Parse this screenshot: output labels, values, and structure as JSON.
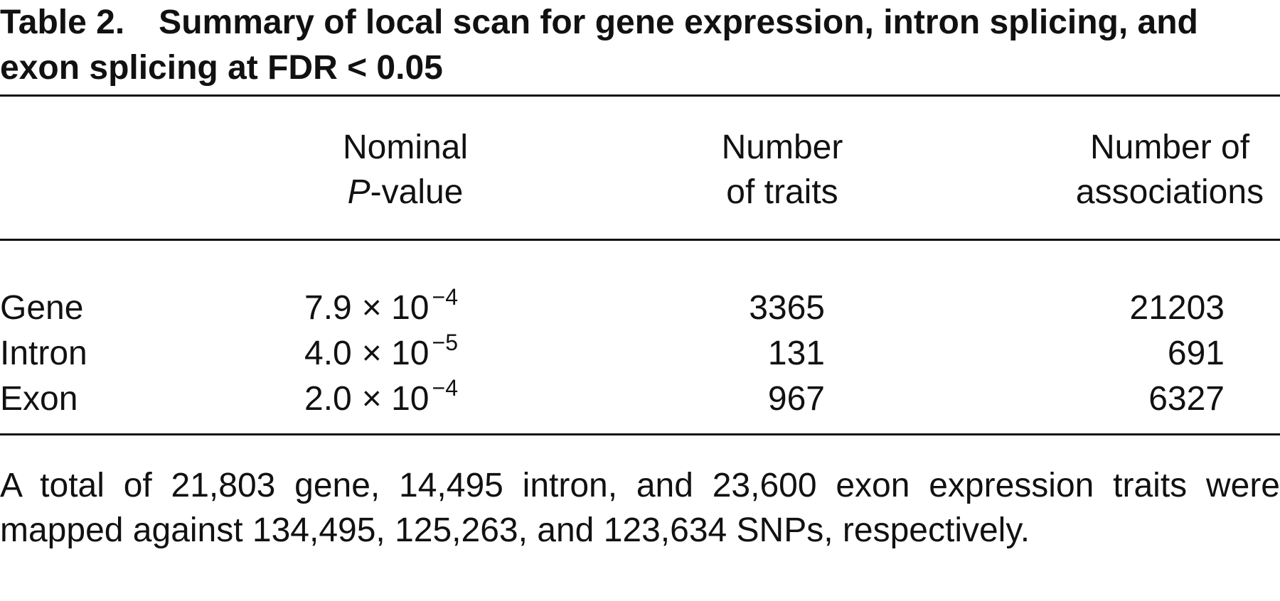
{
  "caption": {
    "label": "Table 2.",
    "title": "Summary of local scan for gene expression, intron splicing, and exon splicing at FDR < 0.05"
  },
  "table": {
    "headers": [
      {
        "line1": "Nominal",
        "italic": "P",
        "rest": "-value"
      },
      {
        "line1": "Number",
        "line2": "of traits"
      },
      {
        "line1": "Number of",
        "line2": "associations"
      }
    ],
    "rows": [
      {
        "label": "Gene",
        "mantissa": "7.9",
        "base": "× 10",
        "exponent": "−4",
        "traits": 3365,
        "associations": 21203
      },
      {
        "label": "Intron",
        "mantissa": "4.0",
        "base": "× 10",
        "exponent": "−5",
        "traits": 131,
        "associations": 691
      },
      {
        "label": "Exon",
        "mantissa": "2.0",
        "base": "× 10",
        "exponent": "−4",
        "traits": 967,
        "associations": 6327
      }
    ]
  },
  "footnote": "A total of 21,803 gene, 14,495 intron, and 23,600 exon expression traits were mapped against 134,495, 125,263, and 123,634 SNPs, respectively."
}
